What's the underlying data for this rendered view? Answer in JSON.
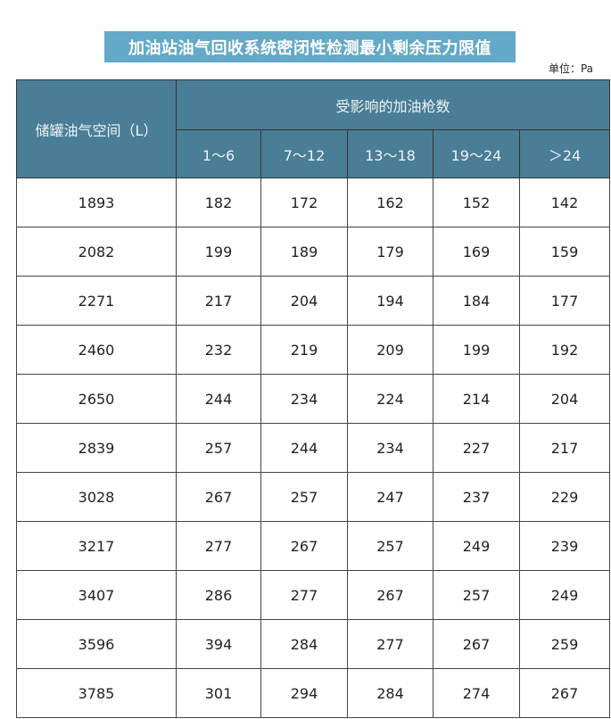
{
  "title": "加油站油气回收系统密闭性检测最小剩余压力限值",
  "unit": "单位：Pa",
  "table": {
    "row_header": "储罐油气空间（L）",
    "group_header": "受影响的加油枪数",
    "columns": [
      "1～6",
      "7～12",
      "13～18",
      "19～24",
      "＞24"
    ],
    "rows": [
      [
        "1893",
        "182",
        "172",
        "162",
        "152",
        "142"
      ],
      [
        "2082",
        "199",
        "189",
        "179",
        "169",
        "159"
      ],
      [
        "2271",
        "217",
        "204",
        "194",
        "184",
        "177"
      ],
      [
        "2460",
        "232",
        "219",
        "209",
        "199",
        "192"
      ],
      [
        "2650",
        "244",
        "234",
        "224",
        "214",
        "204"
      ],
      [
        "2839",
        "257",
        "244",
        "234",
        "227",
        "217"
      ],
      [
        "3028",
        "267",
        "257",
        "247",
        "237",
        "229"
      ],
      [
        "3217",
        "277",
        "267",
        "257",
        "249",
        "239"
      ],
      [
        "3407",
        "286",
        "277",
        "267",
        "257",
        "249"
      ],
      [
        "3596",
        "394",
        "284",
        "277",
        "267",
        "259"
      ],
      [
        "3785",
        "301",
        "294",
        "284",
        "274",
        "267"
      ]
    ]
  }
}
